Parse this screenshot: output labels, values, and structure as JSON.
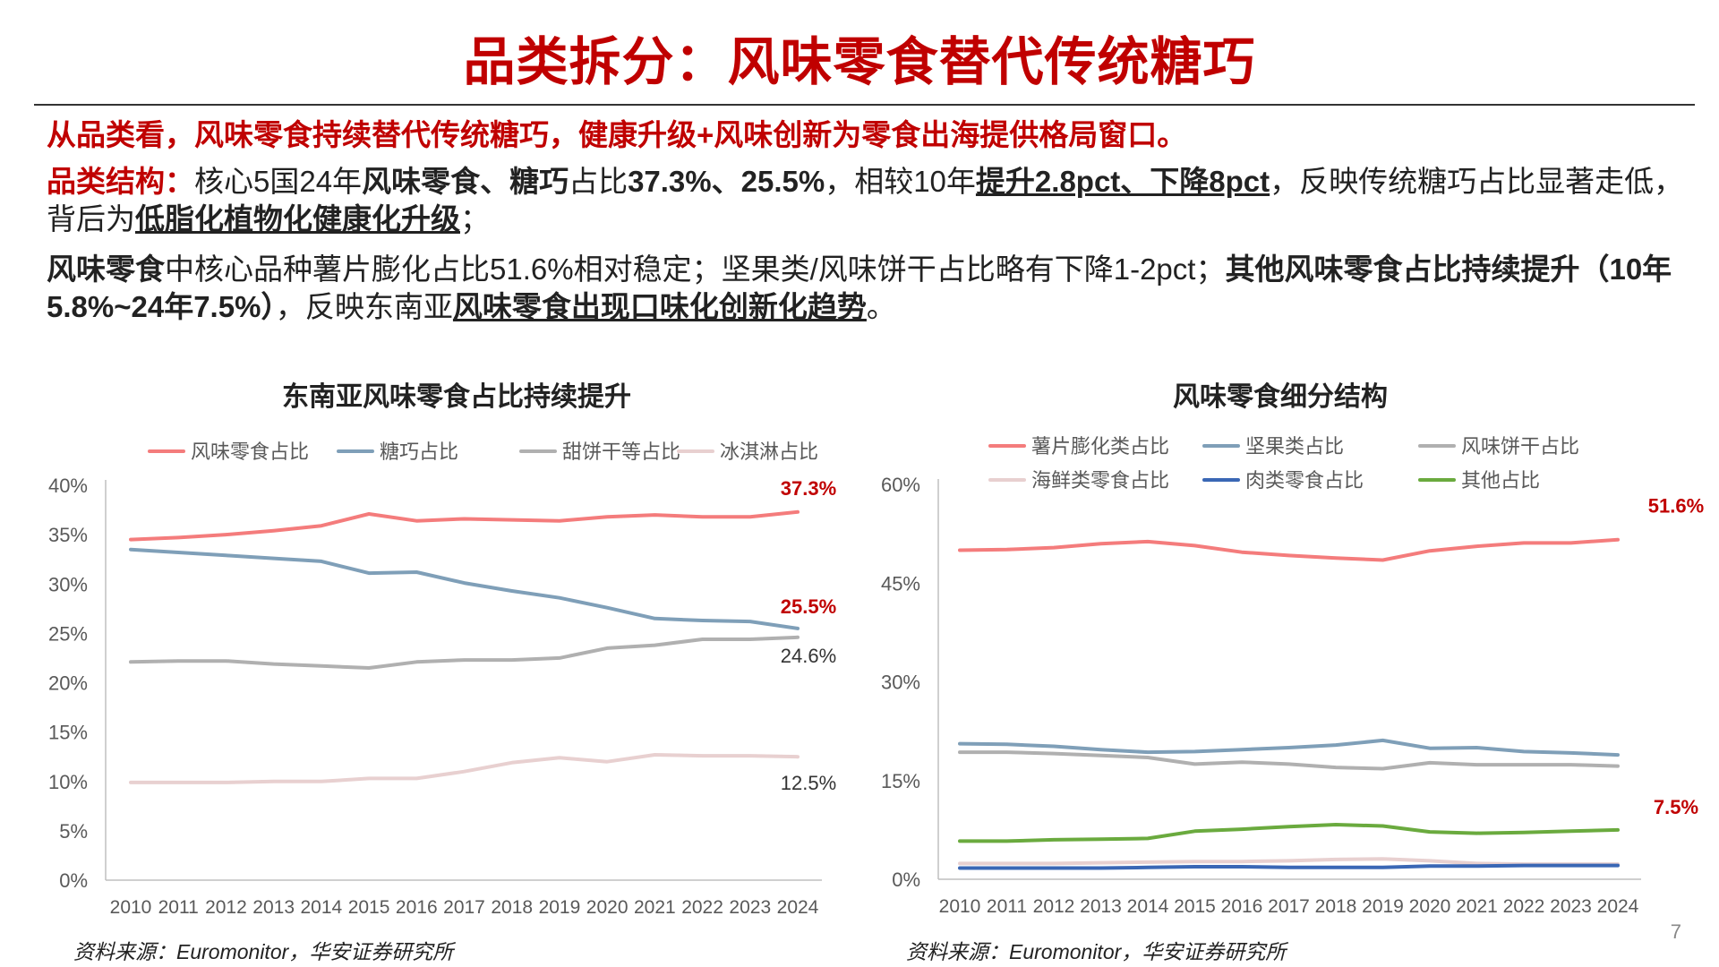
{
  "page": {
    "title": "品类拆分：风味零食替代传统糖巧",
    "lead": "从品类看，风味零食持续替代传统糖巧，健康升级+风味创新为零食出海提供格局窗口。",
    "p2": {
      "label": "品类结构：",
      "t1": "核心5国24年",
      "b1": "风味零食、糖巧",
      "t2": "占比",
      "b2": "37.3%、25.5%",
      "t3": "，相较10年",
      "u1": "提升2.8pct、下降8pct",
      "t4": "，反映传统糖巧占比显著走低，背后为",
      "u2": "低脂化植物化健康化升级",
      "t5": "；"
    },
    "p3": {
      "b1": "风味零食",
      "t1": "中核心品种薯片膨化占比51.6%相对稳定；坚果类/风味饼干占比略有下降1-2pct；",
      "b2": "其他风味零食占比持续提升（10年5.8%~24年7.5%）",
      "t2": "，反映东南亚",
      "u1": "风味零食出现口味化创新化趋势",
      "t3": "。"
    },
    "page_number": "7"
  },
  "chart_data": [
    {
      "type": "line",
      "title": "东南亚风味零食占比持续提升",
      "source": "资料来源：Euromonitor，华安证券研究所",
      "x": [
        "2010",
        "2011",
        "2012",
        "2013",
        "2014",
        "2015",
        "2016",
        "2017",
        "2018",
        "2019",
        "2020",
        "2021",
        "2022",
        "2023",
        "2024"
      ],
      "ylim": [
        0,
        40
      ],
      "yticks": [
        0,
        5,
        10,
        15,
        20,
        25,
        30,
        35,
        40
      ],
      "ytick_labels": [
        "0%",
        "5%",
        "10%",
        "15%",
        "20%",
        "25%",
        "30%",
        "35%",
        "40%"
      ],
      "grid": false,
      "legend": "top",
      "series": [
        {
          "name": "风味零食占比",
          "color": "#f47c7c",
          "values": [
            34.5,
            34.7,
            35.0,
            35.4,
            35.9,
            37.1,
            36.4,
            36.6,
            36.5,
            36.4,
            36.8,
            37.0,
            36.8,
            36.8,
            37.3
          ],
          "end_label": "37.3%",
          "end_label_color": "#c00000",
          "end_label_bold": true
        },
        {
          "name": "糖巧占比",
          "color": "#7f9fb8",
          "values": [
            33.5,
            33.2,
            32.9,
            32.6,
            32.3,
            31.1,
            31.2,
            30.1,
            29.3,
            28.6,
            27.6,
            26.5,
            26.3,
            26.2,
            25.5
          ],
          "end_label": "25.5%",
          "end_label_color": "#c00000",
          "end_label_bold": true
        },
        {
          "name": "甜饼干等占比",
          "color": "#b0b0b0",
          "values": [
            22.1,
            22.2,
            22.2,
            21.9,
            21.7,
            21.5,
            22.1,
            22.3,
            22.3,
            22.5,
            23.5,
            23.8,
            24.4,
            24.4,
            24.6
          ],
          "end_label": "24.6%",
          "end_label_color": "#333333",
          "end_label_bold": false
        },
        {
          "name": "冰淇淋占比",
          "color": "#e8d0d0",
          "values": [
            9.9,
            9.9,
            9.9,
            10.0,
            10.0,
            10.3,
            10.3,
            11.0,
            11.9,
            12.4,
            12.0,
            12.7,
            12.6,
            12.6,
            12.5
          ],
          "end_label": "12.5%",
          "end_label_color": "#333333",
          "end_label_bold": false
        }
      ]
    },
    {
      "type": "line",
      "title": "风味零食细分结构",
      "source": "资料来源：Euromonitor，华安证券研究所",
      "x": [
        "2010",
        "2011",
        "2012",
        "2013",
        "2014",
        "2015",
        "2016",
        "2017",
        "2018",
        "2019",
        "2020",
        "2021",
        "2022",
        "2023",
        "2024"
      ],
      "ylim": [
        0,
        60
      ],
      "yticks": [
        0,
        15,
        30,
        45,
        60
      ],
      "ytick_labels": [
        "0%",
        "15%",
        "30%",
        "45%",
        "60%"
      ],
      "grid": false,
      "legend": "top",
      "series": [
        {
          "name": "薯片膨化类占比",
          "color": "#f47c7c",
          "values": [
            50.0,
            50.1,
            50.4,
            51.0,
            51.3,
            50.7,
            49.7,
            49.2,
            48.8,
            48.5,
            49.9,
            50.6,
            51.1,
            51.1,
            51.6
          ],
          "end_label": "51.6%",
          "end_label_color": "#c00000",
          "end_label_bold": true
        },
        {
          "name": "坚果类占比",
          "color": "#7f9fb8",
          "values": [
            20.6,
            20.5,
            20.2,
            19.7,
            19.3,
            19.4,
            19.7,
            20.0,
            20.4,
            21.1,
            19.9,
            20.0,
            19.4,
            19.2,
            18.9
          ],
          "end_label": "",
          "end_label_color": "#333333",
          "end_label_bold": false
        },
        {
          "name": "风味饼干占比",
          "color": "#b0b0b0",
          "values": [
            19.3,
            19.3,
            19.1,
            18.8,
            18.5,
            17.5,
            17.8,
            17.5,
            17.0,
            16.8,
            17.7,
            17.4,
            17.4,
            17.4,
            17.2
          ],
          "end_label": "",
          "end_label_color": "#333333",
          "end_label_bold": false
        },
        {
          "name": "海鲜类零食占比",
          "color": "#e8d0d0",
          "values": [
            2.4,
            2.4,
            2.4,
            2.5,
            2.6,
            2.7,
            2.7,
            2.8,
            3.0,
            3.1,
            2.8,
            2.4,
            2.3,
            2.3,
            2.3
          ],
          "end_label": "",
          "end_label_color": "#333333",
          "end_label_bold": false
        },
        {
          "name": "肉类零食占比",
          "color": "#3a67b5",
          "values": [
            1.7,
            1.7,
            1.7,
            1.7,
            1.8,
            1.9,
            1.9,
            1.8,
            1.8,
            1.8,
            2.0,
            2.0,
            2.1,
            2.1,
            2.1
          ],
          "end_label": "",
          "end_label_color": "#333333",
          "end_label_bold": false
        },
        {
          "name": "其他占比",
          "color": "#6aaa3e",
          "values": [
            5.8,
            5.8,
            6.0,
            6.1,
            6.2,
            7.3,
            7.6,
            8.0,
            8.3,
            8.1,
            7.2,
            7.0,
            7.1,
            7.3,
            7.5
          ],
          "end_label": "7.5%",
          "end_label_color": "#c00000",
          "end_label_bold": true
        }
      ]
    }
  ]
}
